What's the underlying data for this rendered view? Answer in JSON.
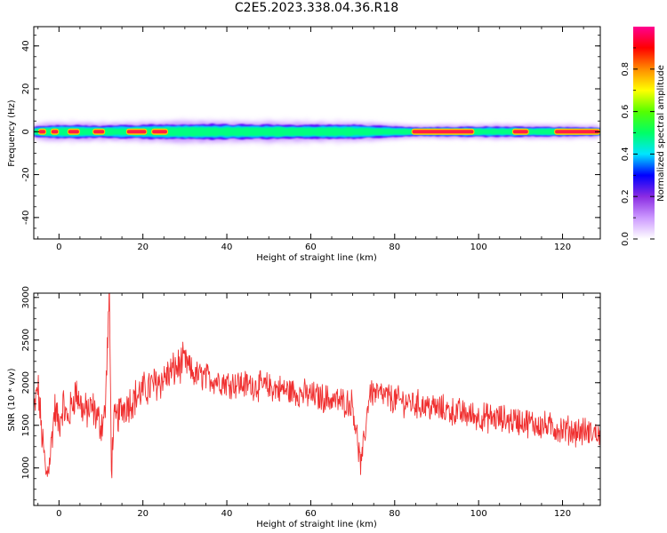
{
  "figure": {
    "title": "C2E5.2023.338.04.36.R18"
  },
  "chart_data": [
    {
      "type": "heatmap",
      "title": "",
      "xlabel": "Height of straight line (km)",
      "ylabel": "Frequency (Hz)",
      "xlim": [
        -6,
        129
      ],
      "ylim": [
        -50,
        49
      ],
      "xticks": [
        0,
        20,
        40,
        60,
        80,
        100,
        120
      ],
      "xtick_labels": [
        "0",
        "20",
        "40",
        "60",
        "80",
        "100",
        "120"
      ],
      "yticks": [
        -40,
        -20,
        0,
        20,
        40
      ],
      "ytick_labels": [
        "-40",
        "-20",
        "0",
        "20",
        "40"
      ],
      "grid": false,
      "colorbar": {
        "label": "Normalized spectral amplitude",
        "range": [
          0,
          1
        ],
        "ticks": [
          0.0,
          0.2,
          0.4,
          0.6,
          0.8
        ],
        "tick_labels": [
          "0.0",
          "0.2",
          "0.4",
          "0.6",
          "0.8"
        ],
        "colormap": [
          "#ffffff",
          "#cc99ff",
          "#8a2be2",
          "#0000ff",
          "#00e5ff",
          "#00ff66",
          "#55ff00",
          "#ffff00",
          "#ff8c00",
          "#ff0000",
          "#ff0090"
        ]
      },
      "band": {
        "center_frequency_hz": 0,
        "outer_halfwidth_profile": [
          [
            -6,
            3
          ],
          [
            0,
            4
          ],
          [
            10,
            3.5
          ],
          [
            30,
            4.5
          ],
          [
            70,
            4
          ],
          [
            85,
            2.5
          ],
          [
            100,
            3
          ],
          [
            129,
            2.5
          ]
        ],
        "high_amplitude_segments_km": [
          [
            -5,
            -3
          ],
          [
            -2,
            0
          ],
          [
            2,
            5
          ],
          [
            8,
            11
          ],
          [
            16,
            21
          ],
          [
            22,
            26
          ],
          [
            84,
            99
          ],
          [
            108,
            112
          ],
          [
            118,
            129
          ]
        ]
      }
    },
    {
      "type": "line",
      "title": "",
      "xlabel": "Height of straight line (km)",
      "ylabel": "SNR (10 * v/v)",
      "xlim": [
        -6,
        129
      ],
      "ylim": [
        560,
        3050
      ],
      "xticks": [
        0,
        20,
        40,
        60,
        80,
        100,
        120
      ],
      "xtick_labels": [
        "0",
        "20",
        "40",
        "60",
        "80",
        "100",
        "120"
      ],
      "yticks": [
        1000,
        1500,
        2000,
        2500,
        3000
      ],
      "ytick_labels": [
        "1000",
        "1500",
        "2000",
        "2500",
        "3000"
      ],
      "grid": false,
      "series": [
        {
          "color": "#f03030",
          "trend_points": [
            [
              -6,
              1650
            ],
            [
              -5,
              1950
            ],
            [
              -4,
              1350
            ],
            [
              -3,
              880
            ],
            [
              -2,
              1200
            ],
            [
              -1,
              1700
            ],
            [
              0,
              1500
            ],
            [
              1,
              1750
            ],
            [
              2,
              1550
            ],
            [
              4,
              1900
            ],
            [
              6,
              1650
            ],
            [
              8,
              1700
            ],
            [
              10,
              1500
            ],
            [
              11,
              1650
            ],
            [
              12,
              3050
            ],
            [
              12.5,
              1000
            ],
            [
              13,
              1500
            ],
            [
              15,
              1700
            ],
            [
              20,
              1900
            ],
            [
              25,
              2050
            ],
            [
              30,
              2250
            ],
            [
              32,
              2100
            ],
            [
              40,
              2000
            ],
            [
              50,
              1950
            ],
            [
              60,
              1850
            ],
            [
              70,
              1750
            ],
            [
              72,
              1000
            ],
            [
              74,
              1900
            ],
            [
              80,
              1800
            ],
            [
              90,
              1700
            ],
            [
              100,
              1600
            ],
            [
              110,
              1550
            ],
            [
              120,
              1450
            ],
            [
              129,
              1400
            ]
          ],
          "noise_amplitude": 150
        }
      ]
    }
  ]
}
